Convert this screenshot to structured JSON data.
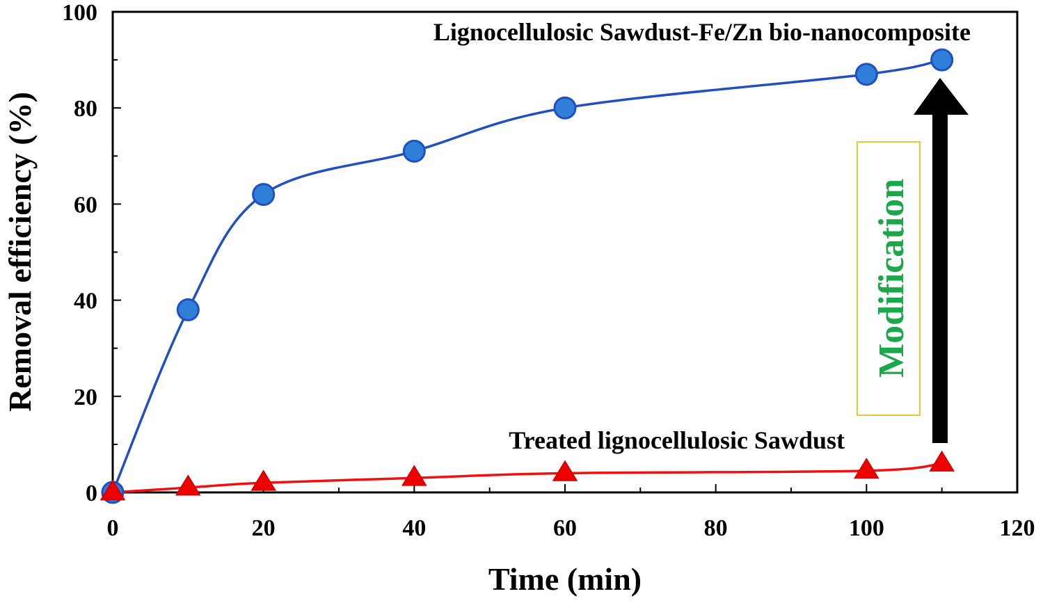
{
  "chart_data": {
    "type": "line",
    "title": "",
    "xlabel": "Time (min)",
    "ylabel": "Removal efficiency (%)",
    "xlim": [
      0,
      120
    ],
    "ylim": [
      0,
      100
    ],
    "xticks": [
      0,
      20,
      40,
      60,
      80,
      100,
      120
    ],
    "yticks": [
      0,
      20,
      40,
      60,
      80,
      100
    ],
    "grid": false,
    "series": [
      {
        "name": "Lignocellulosic Sawdust-Fe/Zn bio-nanocomposite",
        "marker": "circle",
        "color": "#1f4fc0",
        "marker_color": "#2f7fd8",
        "x": [
          0,
          10,
          20,
          40,
          60,
          100,
          110
        ],
        "y": [
          0,
          38,
          62,
          71,
          80,
          87,
          90
        ]
      },
      {
        "name": "Treated lignocellulosic Sawdust",
        "marker": "triangle",
        "color": "#ee1111",
        "marker_color": "#ee0000",
        "x": [
          0,
          10,
          20,
          40,
          60,
          100,
          110
        ],
        "y": [
          0,
          1,
          2,
          3,
          4,
          4.5,
          6
        ]
      }
    ],
    "annotations": [
      {
        "text": "Modification",
        "color": "#1aa84a",
        "box_color": "#e8c640",
        "arrow": "upward black arrow from Treated lignocellulosic Sawdust toward Lignocellulosic Sawdust-Fe/Zn bio-nanocomposite"
      }
    ]
  }
}
